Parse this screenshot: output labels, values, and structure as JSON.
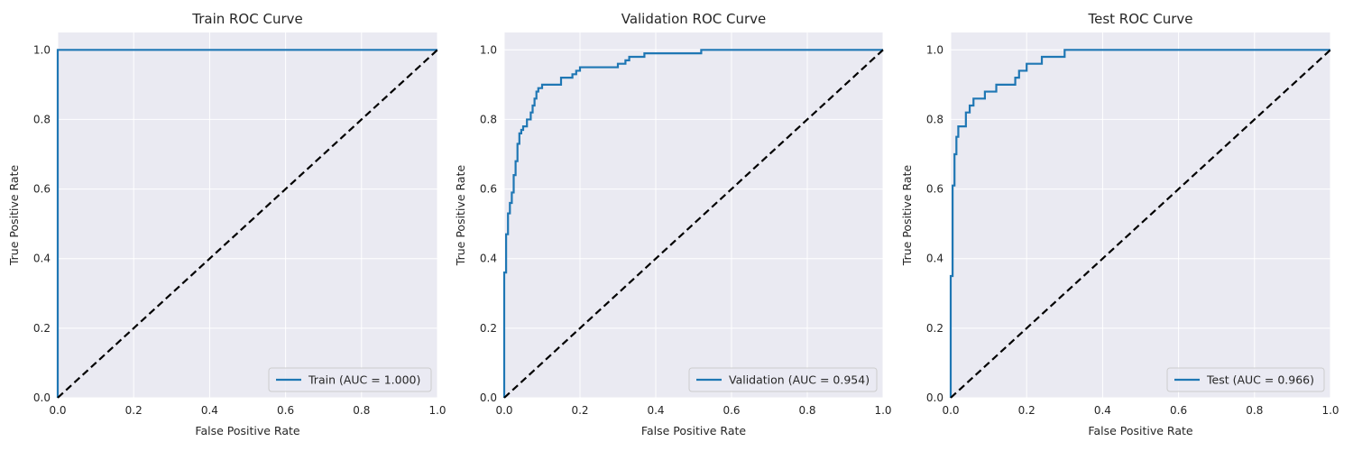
{
  "colors": {
    "curve": "#1f77b4",
    "diagonal": "#000000",
    "background": "#eaeaf2",
    "grid": "#ffffff"
  },
  "chart_data": [
    {
      "type": "line",
      "title": "Train ROC Curve",
      "xlabel": "False Positive Rate",
      "ylabel": "True Positive Rate",
      "xlim": [
        0,
        1
      ],
      "ylim": [
        0,
        1.05
      ],
      "xticks": [
        "0.0",
        "0.2",
        "0.4",
        "0.6",
        "0.8",
        "1.0"
      ],
      "yticks": [
        "0.0",
        "0.2",
        "0.4",
        "0.6",
        "0.8",
        "1.0"
      ],
      "legend_location": "lower-right",
      "series": [
        {
          "name": "Train (AUC = 1.000)",
          "style": "solid",
          "x": [
            0,
            0,
            1
          ],
          "y": [
            0,
            1,
            1
          ]
        },
        {
          "name": "chance",
          "style": "dashed",
          "x": [
            0,
            1
          ],
          "y": [
            0,
            1
          ]
        }
      ]
    },
    {
      "type": "line",
      "title": "Validation ROC Curve",
      "xlabel": "False Positive Rate",
      "ylabel": "True Positive Rate",
      "xlim": [
        0,
        1
      ],
      "ylim": [
        0,
        1.05
      ],
      "xticks": [
        "0.0",
        "0.2",
        "0.4",
        "0.6",
        "0.8",
        "1.0"
      ],
      "yticks": [
        "0.0",
        "0.2",
        "0.4",
        "0.6",
        "0.8",
        "1.0"
      ],
      "legend_location": "lower-right",
      "series": [
        {
          "name": "Validation (AUC = 0.954)",
          "style": "solid",
          "x": [
            0,
            0,
            0.005,
            0.005,
            0.01,
            0.01,
            0.015,
            0.015,
            0.02,
            0.02,
            0.025,
            0.025,
            0.03,
            0.03,
            0.035,
            0.035,
            0.04,
            0.04,
            0.045,
            0.045,
            0.05,
            0.05,
            0.06,
            0.06,
            0.07,
            0.07,
            0.075,
            0.075,
            0.08,
            0.08,
            0.085,
            0.085,
            0.09,
            0.09,
            0.1,
            0.1,
            0.11,
            0.11,
            0.15,
            0.15,
            0.18,
            0.18,
            0.19,
            0.19,
            0.2,
            0.2,
            0.3,
            0.3,
            0.32,
            0.32,
            0.33,
            0.33,
            0.35,
            0.35,
            0.37,
            0.37,
            0.52,
            0.52,
            1.0
          ],
          "y": [
            0,
            0.36,
            0.36,
            0.47,
            0.47,
            0.53,
            0.53,
            0.56,
            0.56,
            0.59,
            0.59,
            0.64,
            0.64,
            0.68,
            0.68,
            0.73,
            0.73,
            0.76,
            0.76,
            0.77,
            0.77,
            0.78,
            0.78,
            0.8,
            0.8,
            0.82,
            0.82,
            0.84,
            0.84,
            0.86,
            0.86,
            0.88,
            0.88,
            0.89,
            0.89,
            0.9,
            0.9,
            0.9,
            0.9,
            0.92,
            0.92,
            0.93,
            0.93,
            0.94,
            0.94,
            0.95,
            0.95,
            0.96,
            0.96,
            0.97,
            0.97,
            0.98,
            0.98,
            0.98,
            0.98,
            0.99,
            0.99,
            1.0,
            1.0
          ]
        },
        {
          "name": "chance",
          "style": "dashed",
          "x": [
            0,
            1
          ],
          "y": [
            0,
            1
          ]
        }
      ]
    },
    {
      "type": "line",
      "title": "Test ROC Curve",
      "xlabel": "False Positive Rate",
      "ylabel": "True Positive Rate",
      "xlim": [
        0,
        1
      ],
      "ylim": [
        0,
        1.05
      ],
      "xticks": [
        "0.0",
        "0.2",
        "0.4",
        "0.6",
        "0.8",
        "1.0"
      ],
      "yticks": [
        "0.0",
        "0.2",
        "0.4",
        "0.6",
        "0.8",
        "1.0"
      ],
      "legend_location": "lower-right",
      "series": [
        {
          "name": "Test (AUC = 0.966)",
          "style": "solid",
          "x": [
            0,
            0,
            0.005,
            0.005,
            0.01,
            0.01,
            0.015,
            0.015,
            0.02,
            0.02,
            0.04,
            0.04,
            0.05,
            0.05,
            0.06,
            0.06,
            0.09,
            0.09,
            0.12,
            0.12,
            0.17,
            0.17,
            0.18,
            0.18,
            0.2,
            0.2,
            0.24,
            0.24,
            0.3,
            0.3,
            1.0
          ],
          "y": [
            0,
            0.35,
            0.35,
            0.61,
            0.61,
            0.7,
            0.7,
            0.75,
            0.75,
            0.78,
            0.78,
            0.82,
            0.82,
            0.84,
            0.84,
            0.86,
            0.86,
            0.88,
            0.88,
            0.9,
            0.9,
            0.92,
            0.92,
            0.94,
            0.94,
            0.96,
            0.96,
            0.98,
            0.98,
            1.0,
            1.0
          ]
        },
        {
          "name": "chance",
          "style": "dashed",
          "x": [
            0,
            1
          ],
          "y": [
            0,
            1
          ]
        }
      ]
    }
  ]
}
